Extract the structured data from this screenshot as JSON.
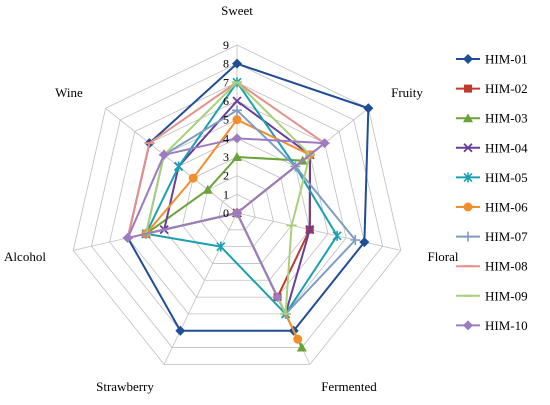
{
  "chart_data": {
    "type": "radar",
    "axes": [
      "Sweet",
      "Fruity",
      "Floral",
      "Fermented",
      "Strawberry",
      "Alcohol",
      "Wine"
    ],
    "range": [
      0,
      9
    ],
    "ticks": [
      "0",
      "1",
      "2",
      "3",
      "4",
      "5",
      "6",
      "7",
      "8",
      "9"
    ],
    "grid": true,
    "legend_position": "right",
    "series": [
      {
        "name": "HIM-01",
        "color": "#1f4e96",
        "marker": "diamond",
        "values": [
          8.0,
          9.0,
          7.0,
          7.0,
          7.0,
          6.0,
          6.0
        ]
      },
      {
        "name": "HIM-02",
        "color": "#c0392b",
        "marker": "square",
        "values": [
          0,
          5.0,
          4.0,
          5.0,
          0,
          5.0,
          0
        ]
      },
      {
        "name": "HIM-03",
        "color": "#6aa338",
        "marker": "triangle",
        "values": [
          3.0,
          4.5,
          0,
          8.0,
          0,
          5.0,
          2.0
        ]
      },
      {
        "name": "HIM-04",
        "color": "#6a3d9a",
        "marker": "x",
        "values": [
          6.0,
          5.0,
          4.0,
          6.0,
          0,
          4.0,
          4.0
        ]
      },
      {
        "name": "HIM-05",
        "color": "#1aa0b0",
        "marker": "asterisk",
        "values": [
          7.0,
          4.0,
          5.5,
          6.0,
          2.0,
          5.0,
          4.0
        ]
      },
      {
        "name": "HIM-06",
        "color": "#f28e2b",
        "marker": "circle",
        "values": [
          5.0,
          5.0,
          0,
          7.5,
          0,
          5.0,
          3.0
        ]
      },
      {
        "name": "HIM-07",
        "color": "#7f9dc4",
        "marker": "plus",
        "values": [
          5.5,
          4.0,
          6.5,
          6.0,
          0,
          5.0,
          5.0
        ]
      },
      {
        "name": "HIM-08",
        "color": "#e8908a",
        "marker": "dash",
        "values": [
          7.0,
          6.0,
          0,
          6.0,
          0,
          6.0,
          6.0
        ]
      },
      {
        "name": "HIM-09",
        "color": "#a8cf7a",
        "marker": "dash",
        "values": [
          7.0,
          5.0,
          3.0,
          6.0,
          0,
          5.0,
          5.0
        ]
      },
      {
        "name": "HIM-10",
        "color": "#9b7cc2",
        "marker": "diamond",
        "values": [
          4.0,
          6.0,
          0,
          5.0,
          0,
          6.0,
          5.0
        ]
      }
    ]
  }
}
